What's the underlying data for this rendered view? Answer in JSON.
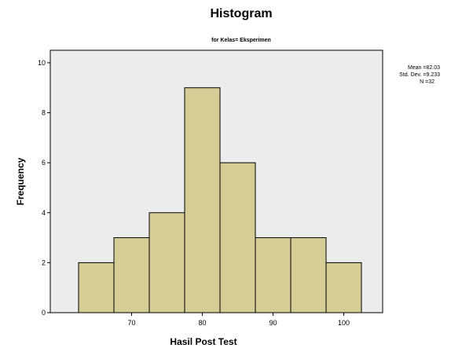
{
  "chart_data": {
    "type": "bar",
    "title": "Histogram",
    "subtitle": "for Kelas= Eksperimen",
    "xlabel": "Hasil Post Test",
    "ylabel": "Frequency",
    "bins": [
      {
        "start": 62.5,
        "end": 67.5,
        "count": 2
      },
      {
        "start": 67.5,
        "end": 72.5,
        "count": 3
      },
      {
        "start": 72.5,
        "end": 77.5,
        "count": 4
      },
      {
        "start": 77.5,
        "end": 82.5,
        "count": 9
      },
      {
        "start": 82.5,
        "end": 87.5,
        "count": 6
      },
      {
        "start": 87.5,
        "end": 92.5,
        "count": 3
      },
      {
        "start": 92.5,
        "end": 97.5,
        "count": 3
      },
      {
        "start": 97.5,
        "end": 102.5,
        "count": 2
      }
    ],
    "xlim": [
      58.5,
      105.5
    ],
    "ylim": [
      0,
      10.5
    ],
    "x_ticks": [
      70,
      80,
      90,
      100
    ],
    "y_ticks": [
      0,
      2,
      4,
      6,
      8,
      10
    ],
    "plot_background": "#ececec",
    "bar_color": "#d5cc96",
    "grid": false,
    "stats": {
      "mean": "Mean =82.03",
      "std_dev": "Std. Dev. =9.233",
      "n": "N =32"
    }
  }
}
